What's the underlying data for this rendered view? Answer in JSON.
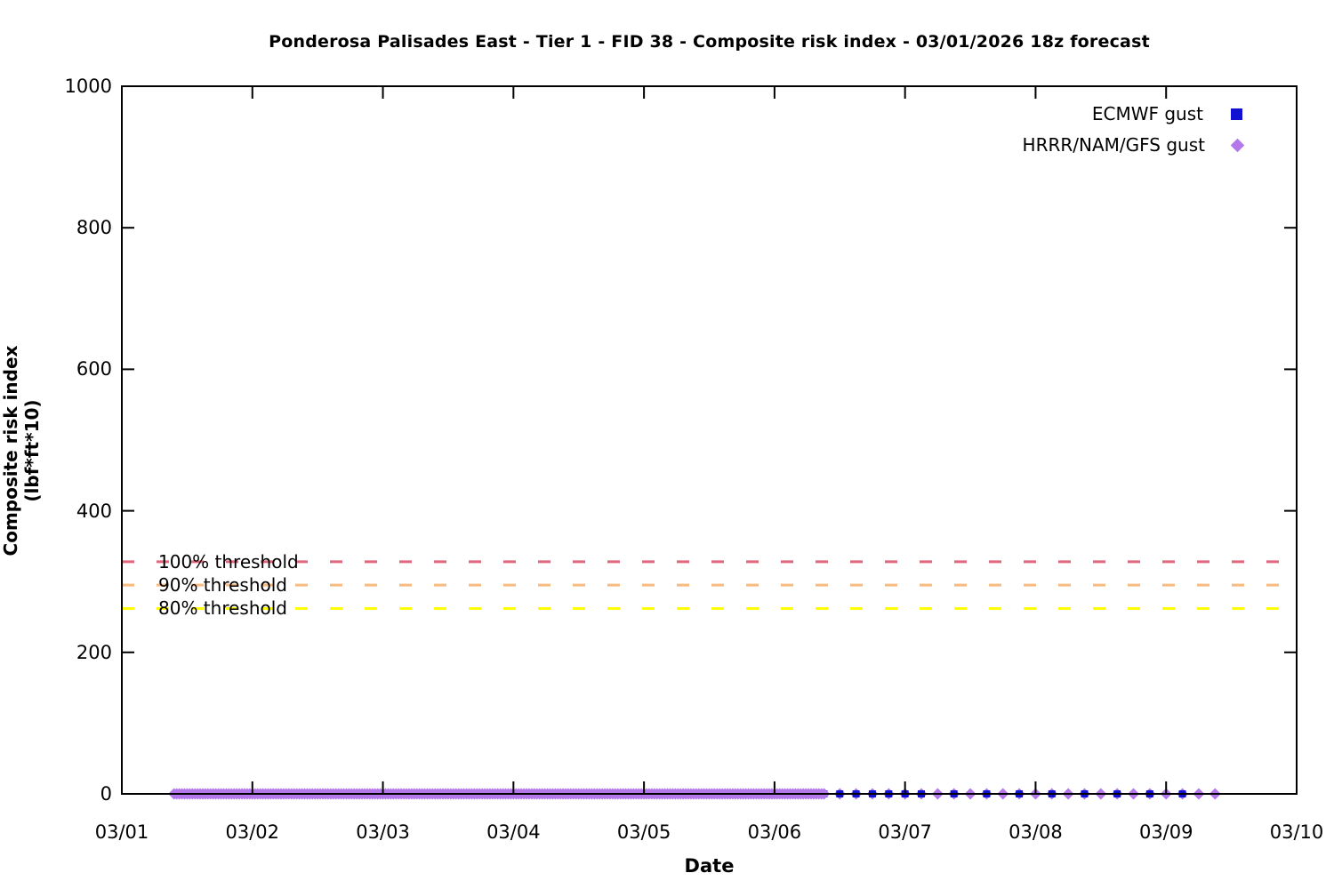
{
  "chart_data": {
    "type": "scatter",
    "title": "Ponderosa Palisades East - Tier 1 - FID 38 - Composite risk index - 03/01/2026 18z forecast",
    "xlabel": "Date",
    "ylabel": "Composite risk index (lbf*ft*10)",
    "x_tick_labels": [
      "03/01",
      "03/02",
      "03/03",
      "03/04",
      "03/05",
      "03/06",
      "03/07",
      "03/08",
      "03/09",
      "03/10"
    ],
    "y_ticks": [
      0,
      200,
      400,
      600,
      800,
      1000
    ],
    "ylim": [
      0,
      1000
    ],
    "xlim_days": [
      0,
      9
    ],
    "grid": false,
    "legend_position": "top-right",
    "axis_color": "#000000",
    "thresholds": [
      {
        "label": "100% threshold",
        "value": 328,
        "color": "#e0687e"
      },
      {
        "label": "90% threshold",
        "value": 295,
        "color": "#f7bb80"
      },
      {
        "label": "80% threshold",
        "value": 262,
        "color": "#ffff00"
      }
    ],
    "series": [
      {
        "name": "ECMWF gust",
        "marker": "square",
        "color": "#1111d1",
        "value": 0,
        "segments": [
          {
            "start_day": 0.42,
            "end_day": 5.38,
            "step_day": 0.04167
          },
          {
            "start_day": 5.5,
            "end_day": 6.125,
            "step_day": 0.125
          },
          {
            "start_day": 6.375,
            "end_day": 8.125,
            "step_day": 0.25
          }
        ]
      },
      {
        "name": "HRRR/NAM/GFS gust",
        "marker": "diamond",
        "color": "#b478ea",
        "value": 0,
        "segments": [
          {
            "start_day": 0.4,
            "end_day": 5.39,
            "step_day": 0.02
          },
          {
            "start_day": 5.5,
            "end_day": 8.375,
            "step_day": 0.125
          }
        ]
      }
    ]
  }
}
